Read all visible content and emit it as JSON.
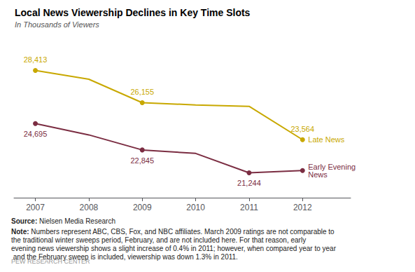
{
  "chart_data": {
    "type": "line",
    "title": "Local News Viewership Declines in Key Time Slots",
    "subtitle": "In Thousands of Viewers",
    "x": [
      2007,
      2008,
      2009,
      2010,
      2011,
      2012
    ],
    "series": [
      {
        "name": "Late News",
        "color": "#C8A800",
        "values": [
          28413,
          27800,
          26155,
          26000,
          25900,
          23564
        ],
        "value_labels": [
          "28,413",
          null,
          "26,155",
          null,
          null,
          "23,564"
        ],
        "marker": "circle",
        "marked_x": [
          2007,
          2009,
          2012
        ]
      },
      {
        "name": "Early Evening\nNews",
        "color": "#7B2D42",
        "values": [
          24695,
          23900,
          22845,
          22600,
          21244,
          21400
        ],
        "value_labels": [
          "24,695",
          null,
          "22,845",
          null,
          "21,244",
          null
        ],
        "marker": "circle",
        "marked_x": [
          2007,
          2009,
          2011,
          2012
        ]
      }
    ],
    "xlim": [
      2006.6,
      2012.9
    ],
    "xticks": [
      2007,
      2008,
      2009,
      2010,
      2011,
      2012
    ],
    "ylim": [
      19500,
      30500
    ],
    "tick_labels": "x",
    "grid": false,
    "source": "Source: Nielsen Media Research",
    "note": "Note: Numbers represent ABC, CBS, Fox, and NBC affiliates. March 2009 ratings are not comparable to the traditional winter sweeps period, February, and are not included here. For that reason, early evening news viewership shows a slight increase of 0.4% in 2011; however, when compared year to year and the February sweep is included, viewership was down 1.3% in 2011.",
    "credit": "PEW RESEARCH CENTER"
  }
}
